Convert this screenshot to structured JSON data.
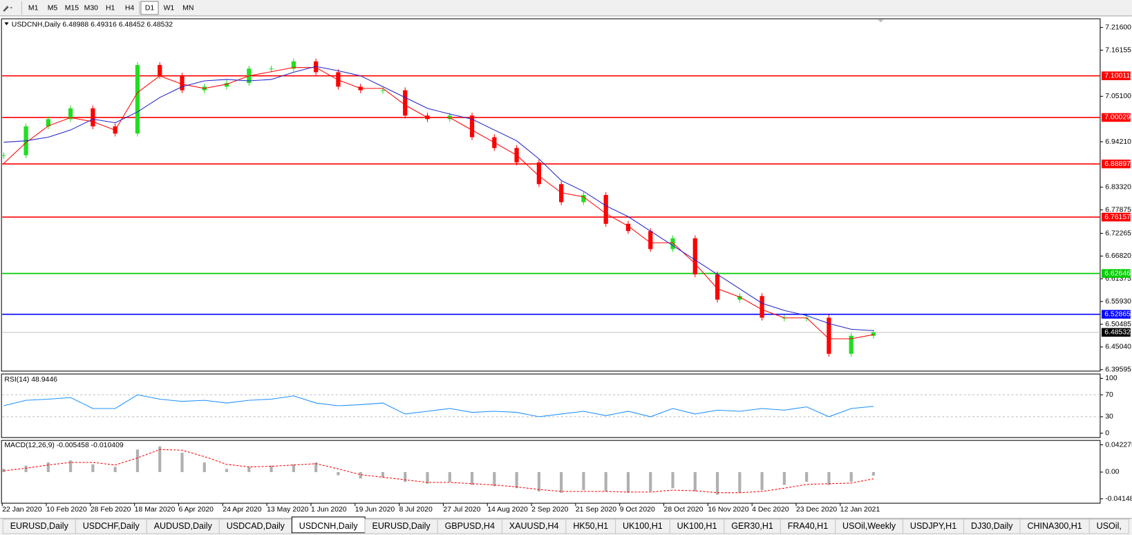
{
  "toolbar": {
    "timeframes": [
      "M1",
      "M5",
      "M15",
      "M30",
      "H1",
      "H4",
      "D1",
      "W1",
      "MN"
    ],
    "active_index": 6
  },
  "chart_data": {
    "type": "candlestick",
    "header": "USDCNH,Daily  6.48988 6.49316 6.48452 6.48532",
    "ylim": [
      6.3925,
      7.2368
    ],
    "yticks": [
      {
        "value": 7.216,
        "label": "7.21600"
      },
      7.16155,
      {
        "value": 7.051,
        "label": "7.05100"
      },
      {
        "value": 6.9421,
        "label": "6.94210"
      },
      {
        "value": 6.8332,
        "label": "6.83320"
      },
      6.77875,
      6.72265,
      {
        "value": 6.6682,
        "label": "6.66820"
      },
      6.61375,
      {
        "value": 6.5593,
        "label": "6.55930"
      },
      6.50485,
      {
        "value": 6.4504,
        "label": "6.45040"
      },
      6.39595
    ],
    "levels": [
      {
        "value": 7.10011,
        "color": "#ff0000",
        "box": "#ff0000"
      },
      {
        "value": 7.00029,
        "color": "#ff0000",
        "box": "#ff0000"
      },
      {
        "value": 6.88897,
        "color": "#ff0000",
        "box": "#ff0000"
      },
      {
        "value": 6.76157,
        "color": "#ff0000",
        "box": "#ff0000"
      },
      {
        "value": 6.62646,
        "color": "#00cc00",
        "box": "#00cc00"
      },
      {
        "value": 6.52865,
        "color": "#0000ff",
        "box": "#0000ff"
      },
      {
        "value": 6.48532,
        "color": "#c0c0c0",
        "box": "#000000"
      }
    ],
    "up_color": "#22dd22",
    "down_color": "#ff0000",
    "closes": [
      6.9098,
      6.979,
      6.9963,
      7.0222,
      6.979,
      6.9617,
      7.126,
      7.1001,
      7.0655,
      7.0741,
      7.0828,
      7.1174,
      7.1174,
      7.1347,
      7.1087,
      7.0741,
      7.0655,
      7.0655,
      7.0049,
      6.9963,
      7.0049,
      6.953,
      6.9271,
      6.8925,
      6.8406,
      6.7973,
      6.8146,
      6.7454,
      6.7281,
      6.6849,
      6.7108,
      6.6243,
      6.5638,
      6.5724,
      6.5205,
      6.5205,
      6.5205,
      6.434,
      6.4772,
      6.48532
    ],
    "ma_fast": {
      "color": "#ff0000",
      "values": [
        6.89,
        6.94,
        6.98,
        7.0,
        6.99,
        6.97,
        7.06,
        7.1,
        7.08,
        7.07,
        7.08,
        7.1,
        7.11,
        7.12,
        7.12,
        7.09,
        7.07,
        7.07,
        7.03,
        7.0,
        7.0,
        6.97,
        6.94,
        6.91,
        6.86,
        6.82,
        6.81,
        6.77,
        6.74,
        6.7,
        6.7,
        6.65,
        6.59,
        6.57,
        6.54,
        6.52,
        6.52,
        6.47,
        6.47,
        6.48
      ]
    },
    "ma_slow": {
      "color": "#2222cc",
      "values": [
        6.9409,
        6.9444,
        6.953,
        6.9703,
        6.9963,
        6.9876,
        7.0136,
        7.0482,
        7.0741,
        7.088,
        7.0914,
        7.088,
        7.0914,
        7.1087,
        7.1226,
        7.1122,
        7.1001,
        7.0741,
        7.0482,
        7.0222,
        7.0084,
        6.9963,
        6.9703,
        6.9444,
        6.9011,
        6.8492,
        6.8233,
        6.7887,
        6.7627,
        6.7281,
        6.6935,
        6.6589,
        6.6243,
        6.5897,
        6.5551,
        6.5378,
        6.5257,
        6.5067,
        6.4928,
        6.4894
      ]
    },
    "dates": [
      "22 Jan 2020",
      "10 Feb 2020",
      "28 Feb 2020",
      "18 Mar 2020",
      "6 Apr 2020",
      "24 Apr 2020",
      "13 May 2020",
      "1 Jun 2020",
      "19 Jun 2020",
      "8 Jul 2020",
      "27 Jul 2020",
      "14 Aug 2020",
      "2 Sep 2020",
      "21 Sep 2020",
      "9 Oct 2020",
      "28 Oct 2020",
      "16 Nov 2020",
      "4 Dec 2020",
      "23 Dec 2020",
      "12 Jan 2021"
    ]
  },
  "rsi": {
    "header": "RSI(14) 48.9446",
    "ylim": [
      0,
      100
    ],
    "yticks": [
      100,
      70,
      30,
      0
    ],
    "levels": [
      70,
      30
    ],
    "color": "#1e90ff",
    "values": [
      50,
      60,
      62,
      65,
      45,
      45,
      70,
      62,
      58,
      60,
      55,
      60,
      62,
      68,
      55,
      50,
      52,
      55,
      35,
      40,
      45,
      38,
      40,
      38,
      30,
      35,
      40,
      32,
      40,
      30,
      45,
      35,
      42,
      40,
      45,
      42,
      48,
      30,
      45,
      48.9446
    ]
  },
  "macd": {
    "header": "MACD(12,26,9) -0.005458 -0.010409",
    "ylim": [
      -0.0483,
      0.0491
    ],
    "yticks": [
      0.042275,
      {
        "value": 0,
        "label": "0.00"
      },
      -0.04148
    ],
    "hist_color": "#b0b0b0",
    "signal_color": "#ff0000",
    "hist": [
      0.005,
      0.01,
      0.015,
      0.018,
      0.012,
      0.008,
      0.035,
      0.04,
      0.03,
      0.015,
      0.005,
      0.008,
      0.01,
      0.012,
      0.015,
      -0.005,
      -0.01,
      -0.008,
      -0.015,
      -0.018,
      -0.015,
      -0.02,
      -0.022,
      -0.025,
      -0.03,
      -0.032,
      -0.028,
      -0.03,
      -0.032,
      -0.03,
      -0.025,
      -0.03,
      -0.035,
      -0.032,
      -0.028,
      -0.02,
      -0.015,
      -0.02,
      -0.015,
      -0.005458
    ],
    "signal": [
      0.002,
      0.006,
      0.011,
      0.015,
      0.015,
      0.011,
      0.022,
      0.035,
      0.034,
      0.024,
      0.012,
      0.008,
      0.009,
      0.011,
      0.013,
      0.005,
      -0.004,
      -0.008,
      -0.012,
      -0.016,
      -0.016,
      -0.018,
      -0.02,
      -0.023,
      -0.027,
      -0.03,
      -0.03,
      -0.03,
      -0.031,
      -0.031,
      -0.028,
      -0.029,
      -0.032,
      -0.032,
      -0.03,
      -0.025,
      -0.019,
      -0.018,
      -0.017,
      -0.010409
    ]
  },
  "tabs": {
    "items": [
      "EURUSD,Daily",
      "USDCHF,Daily",
      "AUDUSD,Daily",
      "USDCAD,Daily",
      "USDCNH,Daily",
      "EURUSD,Daily",
      "GBPUSD,H4",
      "XAUUSD,H4",
      "HK50,H1",
      "UK100,H1",
      "UK100,H1",
      "GER30,H1",
      "FRA40,H1",
      "USOil,Weekly",
      "USDJPY,H1",
      "DJ30,Daily",
      "CHINA300,H1",
      "USOil,"
    ],
    "active_index": 4
  }
}
